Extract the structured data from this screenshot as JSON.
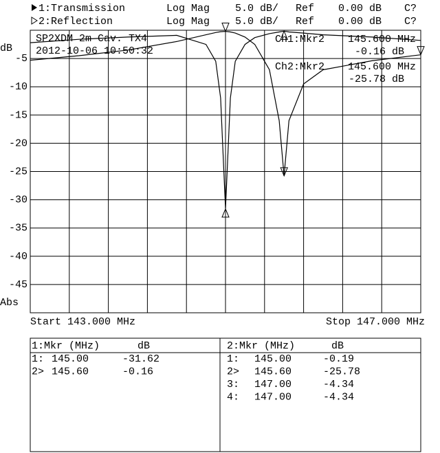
{
  "header": {
    "rows": [
      [
        "1:Transmission",
        "Log Mag",
        "5.0 dB/",
        "Ref",
        "0.00 dB",
        "C?"
      ],
      [
        "2:Reflection",
        "Log Mag",
        "5.0 dB/",
        "Ref",
        "0.00 dB",
        "C?"
      ]
    ]
  },
  "chart_data": {
    "type": "line",
    "y_label": "dB",
    "y_label_bottom": "Abs",
    "annotations": [
      "SP2XDM 2m Cav. TX4",
      "2012-10-06 10:50:32"
    ],
    "marker_readouts": [
      [
        "Ch1:Mkr2",
        "145.600 MHz",
        "-0.16 dB"
      ],
      [
        "Ch2:Mkr2",
        "145.600 MHz",
        "-25.78 dB"
      ]
    ],
    "start": "Start 143.000 MHz",
    "stop": "Stop 147.000 MHz",
    "xlim": [
      143,
      147
    ],
    "ylim": [
      -50,
      0
    ],
    "yticks": [
      -5,
      -10,
      -15,
      -20,
      -25,
      -30,
      -35,
      -40,
      -45
    ],
    "grid": true,
    "x": [
      143.0,
      143.5,
      144.0,
      144.5,
      144.8,
      144.9,
      144.95,
      145.0,
      145.05,
      145.1,
      145.2,
      145.3,
      145.45,
      145.55,
      145.6,
      145.65,
      145.8,
      146.0,
      146.5,
      147.0
    ],
    "series": [
      {
        "name": "1:Transmission",
        "color": "#000000",
        "values": [
          -2.2,
          -1.6,
          -1.2,
          -0.9,
          -2.5,
          -5.5,
          -12,
          -31.62,
          -12,
          -5.5,
          -2.5,
          -1.3,
          -0.6,
          -0.3,
          -0.16,
          -0.3,
          -0.5,
          -0.8,
          -1.2,
          -1.8
        ]
      },
      {
        "name": "2:Reflection",
        "color": "#000000",
        "values": [
          -5.3,
          -4.5,
          -3.5,
          -2,
          -0.8,
          -0.4,
          -0.25,
          -0.19,
          -0.3,
          -0.5,
          -1.2,
          -2.5,
          -7,
          -16,
          -25.78,
          -16,
          -9.5,
          -7,
          -5.4,
          -4.34
        ]
      }
    ]
  },
  "marker_tables": [
    {
      "header": [
        "1:Mkr (MHz)",
        "dB"
      ],
      "rows": [
        [
          "1:",
          "145.00",
          "-31.62"
        ],
        [
          "2>",
          "145.60",
          "-0.16"
        ]
      ]
    },
    {
      "header": [
        "2:Mkr (MHz)",
        "dB"
      ],
      "rows": [
        [
          "1:",
          "145.00",
          "-0.19"
        ],
        [
          "2>",
          "145.60",
          "-25.78"
        ],
        [
          "3:",
          "147.00",
          "-4.34"
        ],
        [
          "4:",
          "147.00",
          "-4.34"
        ]
      ]
    }
  ]
}
